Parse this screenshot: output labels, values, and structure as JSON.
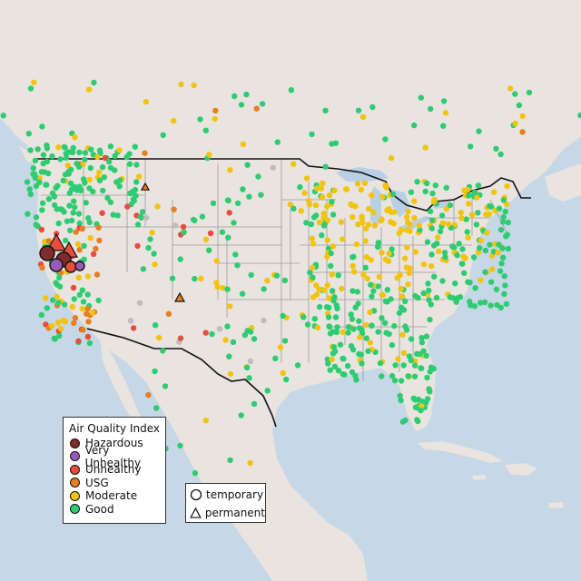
{
  "map": {
    "colors": {
      "ocean": "#c6d7e6",
      "land": "#e9e4e0",
      "land_north": "#eeebe8",
      "terrain": "#ddd6cf",
      "state_border": "#9a9a9a",
      "national_border": "#111111",
      "lakes": "#b9cfe3"
    }
  },
  "legend": {
    "title": "Air Quality Index",
    "items": [
      {
        "label": "Hazardous",
        "color": "#7e2c2c"
      },
      {
        "label": "Very Unhealthy",
        "color": "#9b59b6"
      },
      {
        "label": "Unhealthy",
        "color": "#e74c3c"
      },
      {
        "label": "USG",
        "color": "#e67e22"
      },
      {
        "label": "Moderate",
        "color": "#f1c40f"
      },
      {
        "label": "Good",
        "color": "#2ecc71"
      }
    ],
    "no_data_color": "#bdbdbd"
  },
  "type_legend": {
    "items": [
      {
        "label": "temporary",
        "icon": "circle-outline-icon"
      },
      {
        "label": "permanent",
        "icon": "triangle-outline-icon"
      }
    ]
  }
}
